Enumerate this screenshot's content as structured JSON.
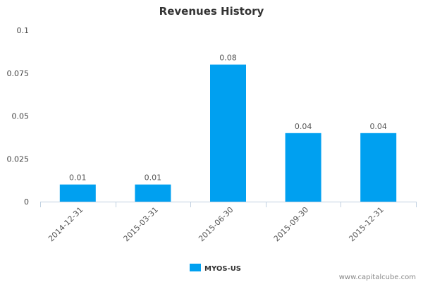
{
  "chart_data": {
    "type": "bar",
    "title": "Revenues History",
    "xlabel": "",
    "ylabel": "",
    "categories": [
      "2014-12-31",
      "2015-03-31",
      "2015-06-30",
      "2015-09-30",
      "2015-12-31"
    ],
    "series": [
      {
        "name": "MYOS-US",
        "values": [
          0.01,
          0.01,
          0.08,
          0.04,
          0.04
        ],
        "color": "#00a0f0"
      }
    ],
    "data_labels": [
      "0.01",
      "0.01",
      "0.08",
      "0.04",
      "0.04"
    ],
    "ylim": [
      0,
      0.1
    ],
    "yticks": [
      0,
      0.025,
      0.05,
      0.075,
      0.1
    ],
    "ytick_labels": [
      "0",
      "0.025",
      "0.05",
      "0.075",
      "0.1"
    ],
    "grid": false,
    "legend_position": "bottom-center"
  },
  "credit": "www.capitalcube.com",
  "colors": {
    "bar": "#00a0f0",
    "axis": "#c0d0e0",
    "text": "#333333"
  }
}
